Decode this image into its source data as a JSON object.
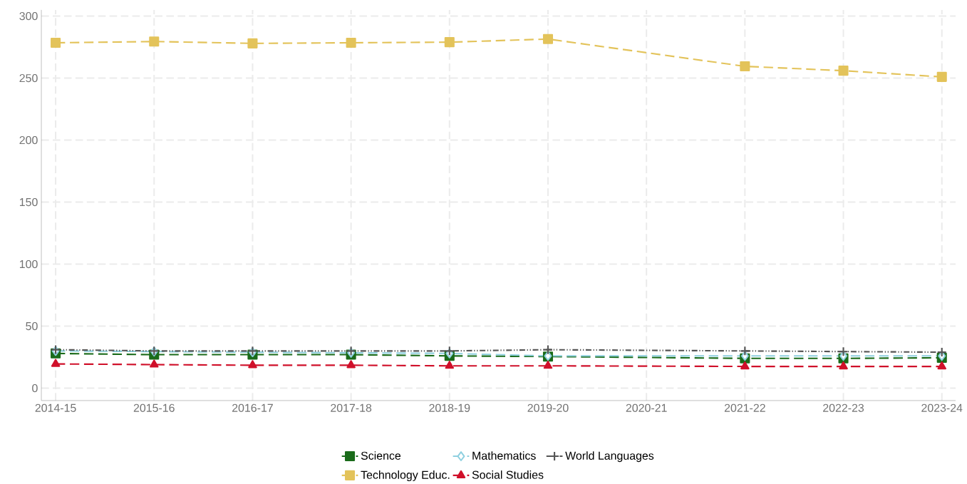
{
  "chart_data": {
    "type": "line",
    "categories": [
      "2014-15",
      "2015-16",
      "2016-17",
      "2017-18",
      "2018-19",
      "2019-20",
      "2020-21",
      "2021-22",
      "2022-23",
      "2023-24"
    ],
    "series": [
      {
        "name": "Science",
        "color": "#1a6b1a",
        "marker": "square",
        "line_style": "dashed",
        "values": [
          28,
          27,
          27,
          27,
          26,
          25.5,
          null,
          24,
          24,
          24.5
        ]
      },
      {
        "name": "Mathematics",
        "color": "#8fd0e0",
        "marker": "diamond",
        "line_style": "dashed",
        "values": [
          30,
          29.5,
          29,
          28.5,
          28,
          26,
          null,
          26,
          26,
          26
        ]
      },
      {
        "name": "World Languages",
        "color": "#555555",
        "marker": "cross",
        "line_style": "dotted",
        "values": [
          31,
          30,
          30,
          30,
          30,
          31,
          null,
          30,
          29.5,
          29
        ]
      },
      {
        "name": "Technology Educ.",
        "color": "#e3c35a",
        "marker": "square",
        "line_style": "dashed",
        "values": [
          278.5,
          279.5,
          278,
          278.5,
          279,
          281.5,
          null,
          259.5,
          256,
          251
        ]
      },
      {
        "name": "Social Studies",
        "color": "#d0102a",
        "marker": "triangle",
        "line_style": "dashed",
        "values": [
          19.5,
          19,
          18.5,
          18.5,
          18,
          18,
          null,
          17.5,
          17.5,
          17.5
        ]
      }
    ],
    "ylim": [
      -10,
      305
    ],
    "yticks": [
      0,
      50,
      100,
      150,
      200,
      250,
      300
    ],
    "grid": true,
    "legend": "bottom"
  }
}
